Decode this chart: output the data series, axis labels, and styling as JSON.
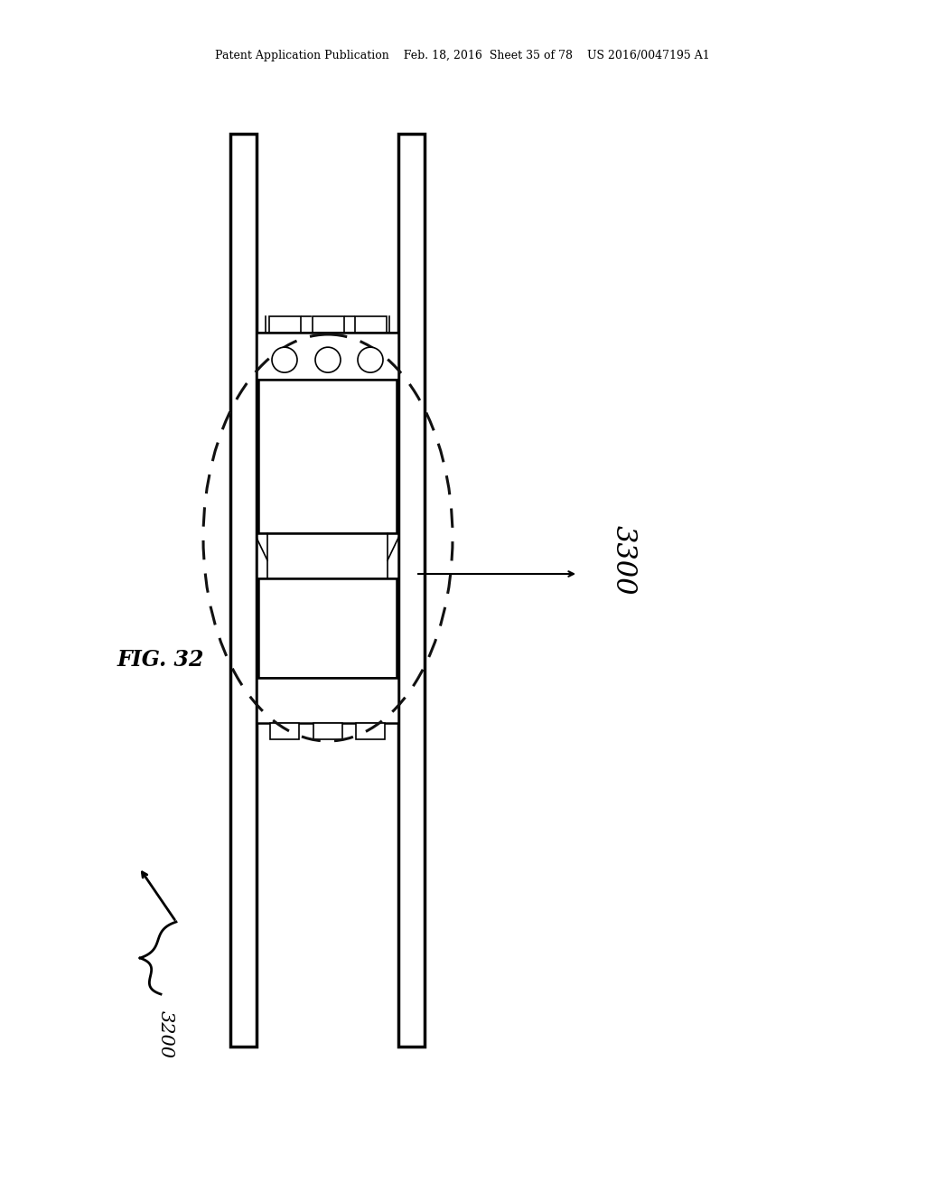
{
  "bg_color": "#ffffff",
  "line_color": "#000000",
  "header_text": "Patent Application Publication    Feb. 18, 2016  Sheet 35 of 78    US 2016/0047195 A1",
  "fig_label": "FIG. 32",
  "label_3300": "3300",
  "label_3200": "3200",
  "fig_width": 10.24,
  "fig_height": 13.2,
  "dpi": 100
}
